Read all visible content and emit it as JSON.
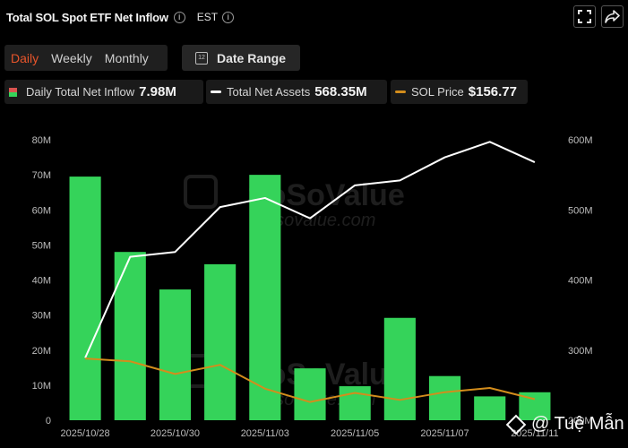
{
  "header": {
    "title": "Total SOL Spot ETF Net Inflow",
    "timezone": "EST",
    "icons": [
      "info-icon",
      "info-icon",
      "fullscreen-icon",
      "share-icon"
    ]
  },
  "controls": {
    "periods": [
      "Daily",
      "Weekly",
      "Monthly"
    ],
    "active_period": "Daily",
    "date_range_label": "Date Range",
    "calendar_icon_text": "12",
    "accent_color": "#e8552b"
  },
  "legend": [
    {
      "label": "Daily Total Net Inflow",
      "value": "7.98M",
      "icon": "red-green-bar-icon"
    },
    {
      "label": "Total Net Assets",
      "value": "568.35M",
      "icon": "white-line-icon",
      "color": "#ffffff"
    },
    {
      "label": "SOL Price",
      "value": "$156.77",
      "icon": "orange-line-icon",
      "color": "#d38d1c"
    }
  ],
  "watermark": {
    "brand": "SoSoValue",
    "domain": "sosovalue.com",
    "user": "@ Tuệ Mẫn"
  },
  "chart_data": {
    "type": "bar",
    "categories": [
      "2025/10/28",
      "2025/10/29",
      "2025/10/30",
      "2025/10/31",
      "2025/11/03",
      "2025/11/04",
      "2025/11/05",
      "2025/11/06",
      "2025/11/07",
      "2025/11/10",
      "2025/11/11"
    ],
    "x_tick_labels": [
      "2025/10/28",
      "2025/10/30",
      "2025/11/03",
      "2025/11/05",
      "2025/11/07",
      "2025/11/11"
    ],
    "left_axis": {
      "min": 0,
      "max": 80,
      "ticks": [
        "0",
        "10M",
        "20M",
        "30M",
        "40M",
        "50M",
        "60M",
        "70M",
        "80M"
      ]
    },
    "right_axis": {
      "min": 200,
      "max": 600,
      "ticks": [
        "200M",
        "300M",
        "400M",
        "500M",
        "600M"
      ]
    },
    "series": [
      {
        "name": "Daily Total Net Inflow",
        "kind": "bar",
        "axis": "left",
        "color": "#35d35a",
        "values": [
          69.5,
          48.0,
          37.3,
          44.5,
          70.0,
          14.8,
          9.7,
          29.2,
          12.6,
          6.8,
          7.98
        ]
      },
      {
        "name": "Total Net Assets",
        "kind": "line",
        "axis": "right",
        "color": "#ffffff",
        "values": [
          289,
          433,
          440,
          504,
          517,
          488,
          535,
          542,
          575,
          597,
          568
        ]
      },
      {
        "name": "SOL Price",
        "kind": "line",
        "axis": "right",
        "color": "#d38d1c",
        "values": [
          288,
          284,
          266,
          279,
          245,
          226,
          239,
          229,
          240,
          246,
          230
        ]
      }
    ],
    "grid": false,
    "legend_position": "top"
  }
}
